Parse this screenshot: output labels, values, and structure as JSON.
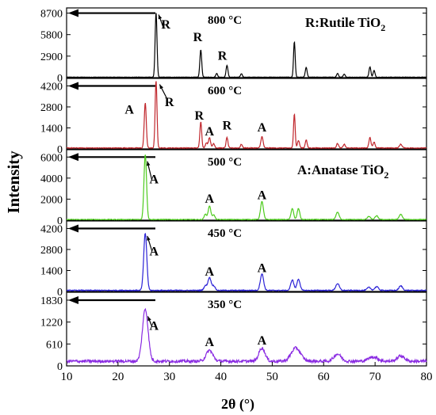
{
  "figure": {
    "ylabel": "Intensity",
    "xlabel": "2θ (°)",
    "xlim": [
      10,
      80
    ],
    "xticks": [
      10,
      20,
      30,
      40,
      50,
      60,
      70,
      80
    ],
    "legend_rutile": "R:Rutile TiO",
    "legend_anatase": "A:Anatase TiO",
    "legend_subscript": "2"
  },
  "chart_data": [
    {
      "type": "line",
      "series_label": "800 °C",
      "color": "#000000",
      "ylim": [
        0,
        9400
      ],
      "yticks": [
        0,
        2900,
        5800,
        8700
      ],
      "baseline": 60,
      "noise": 25,
      "peaks": [
        {
          "x": 27.4,
          "y": 8700,
          "w": 0.18
        },
        {
          "x": 36.1,
          "y": 3700,
          "w": 0.18
        },
        {
          "x": 39.2,
          "y": 500,
          "w": 0.18
        },
        {
          "x": 41.2,
          "y": 1600,
          "w": 0.18
        },
        {
          "x": 44.0,
          "y": 450,
          "w": 0.18
        },
        {
          "x": 54.3,
          "y": 4800,
          "w": 0.16
        },
        {
          "x": 56.6,
          "y": 1300,
          "w": 0.18
        },
        {
          "x": 62.7,
          "y": 500,
          "w": 0.18
        },
        {
          "x": 64.0,
          "y": 400,
          "w": 0.18
        },
        {
          "x": 69.0,
          "y": 1400,
          "w": 0.18
        },
        {
          "x": 69.8,
          "y": 900,
          "w": 0.18
        }
      ],
      "annotations": [
        {
          "label": "R",
          "x": 29.3,
          "y": 6600
        },
        {
          "label": "R",
          "x": 35.5,
          "y": 4900
        },
        {
          "label": "R",
          "x": 40.3,
          "y": 2400
        }
      ]
    },
    {
      "type": "line",
      "series_label": "600 °C",
      "color": "#c0272d",
      "ylim": [
        0,
        4700
      ],
      "yticks": [
        0,
        1400,
        2800,
        4200
      ],
      "baseline": 60,
      "noise": 25,
      "peaks": [
        {
          "x": 25.3,
          "y": 3000,
          "w": 0.2
        },
        {
          "x": 27.4,
          "y": 4500,
          "w": 0.18
        },
        {
          "x": 36.1,
          "y": 1750,
          "w": 0.18
        },
        {
          "x": 37.2,
          "y": 350,
          "w": 0.2
        },
        {
          "x": 37.8,
          "y": 700,
          "w": 0.2
        },
        {
          "x": 38.6,
          "y": 300,
          "w": 0.2
        },
        {
          "x": 41.2,
          "y": 700,
          "w": 0.18
        },
        {
          "x": 44.0,
          "y": 250,
          "w": 0.18
        },
        {
          "x": 48.0,
          "y": 750,
          "w": 0.22
        },
        {
          "x": 54.3,
          "y": 2300,
          "w": 0.16
        },
        {
          "x": 55.1,
          "y": 500,
          "w": 0.2
        },
        {
          "x": 56.6,
          "y": 550,
          "w": 0.18
        },
        {
          "x": 62.7,
          "y": 300,
          "w": 0.2
        },
        {
          "x": 64.0,
          "y": 250,
          "w": 0.2
        },
        {
          "x": 69.0,
          "y": 700,
          "w": 0.2
        },
        {
          "x": 69.8,
          "y": 400,
          "w": 0.2
        },
        {
          "x": 75.0,
          "y": 250,
          "w": 0.25
        }
      ],
      "annotations": [
        {
          "label": "A",
          "x": 22.2,
          "y": 2350
        },
        {
          "label": "R",
          "x": 30.0,
          "y": 2850
        },
        {
          "label": "R",
          "x": 35.8,
          "y": 1950
        },
        {
          "label": "A",
          "x": 37.8,
          "y": 900
        },
        {
          "label": "R",
          "x": 41.2,
          "y": 1300
        },
        {
          "label": "A",
          "x": 48.0,
          "y": 1150
        }
      ]
    },
    {
      "type": "line",
      "series_label": "500 °C",
      "color": "#4ecb1e",
      "ylim": [
        0,
        6700
      ],
      "yticks": [
        0,
        2000,
        4000,
        6000
      ],
      "baseline": 60,
      "noise": 30,
      "peaks": [
        {
          "x": 25.3,
          "y": 6200,
          "w": 0.25
        },
        {
          "x": 37.0,
          "y": 500,
          "w": 0.25
        },
        {
          "x": 37.8,
          "y": 1300,
          "w": 0.25
        },
        {
          "x": 38.6,
          "y": 450,
          "w": 0.25
        },
        {
          "x": 48.0,
          "y": 1700,
          "w": 0.28
        },
        {
          "x": 53.9,
          "y": 1050,
          "w": 0.25
        },
        {
          "x": 55.1,
          "y": 1050,
          "w": 0.25
        },
        {
          "x": 62.7,
          "y": 700,
          "w": 0.3
        },
        {
          "x": 68.8,
          "y": 300,
          "w": 0.3
        },
        {
          "x": 70.3,
          "y": 350,
          "w": 0.3
        },
        {
          "x": 75.0,
          "y": 500,
          "w": 0.3
        }
      ],
      "annotations": [
        {
          "label": "A",
          "x": 27.0,
          "y": 3500
        },
        {
          "label": "A",
          "x": 37.8,
          "y": 1650
        },
        {
          "label": "A",
          "x": 48.0,
          "y": 2000
        }
      ]
    },
    {
      "type": "line",
      "series_label": "450 °C",
      "color": "#2b22d6",
      "ylim": [
        0,
        4700
      ],
      "yticks": [
        0,
        1400,
        2800,
        4200
      ],
      "baseline": 70,
      "noise": 30,
      "peaks": [
        {
          "x": 25.3,
          "y": 3800,
          "w": 0.3
        },
        {
          "x": 37.0,
          "y": 300,
          "w": 0.3
        },
        {
          "x": 37.8,
          "y": 850,
          "w": 0.3
        },
        {
          "x": 38.6,
          "y": 300,
          "w": 0.3
        },
        {
          "x": 48.0,
          "y": 1100,
          "w": 0.32
        },
        {
          "x": 53.9,
          "y": 700,
          "w": 0.3
        },
        {
          "x": 55.1,
          "y": 750,
          "w": 0.3
        },
        {
          "x": 62.7,
          "y": 450,
          "w": 0.35
        },
        {
          "x": 68.8,
          "y": 200,
          "w": 0.35
        },
        {
          "x": 70.3,
          "y": 250,
          "w": 0.35
        },
        {
          "x": 75.0,
          "y": 300,
          "w": 0.35
        }
      ],
      "annotations": [
        {
          "label": "A",
          "x": 27.0,
          "y": 2400
        },
        {
          "label": "A",
          "x": 37.8,
          "y": 1050
        },
        {
          "label": "A",
          "x": 48.0,
          "y": 1300
        }
      ]
    },
    {
      "type": "line",
      "series_label": "350 °C",
      "color": "#8a2be2",
      "ylim": [
        0,
        2050
      ],
      "yticks": [
        0,
        610,
        1220,
        1830
      ],
      "baseline": 130,
      "noise": 40,
      "peaks": [
        {
          "x": 25.3,
          "y": 1450,
          "w": 0.55
        },
        {
          "x": 37.8,
          "y": 300,
          "w": 0.65
        },
        {
          "x": 48.0,
          "y": 370,
          "w": 0.6
        },
        {
          "x": 54.6,
          "y": 370,
          "w": 0.9
        },
        {
          "x": 62.7,
          "y": 200,
          "w": 0.7
        },
        {
          "x": 69.6,
          "y": 120,
          "w": 0.9
        },
        {
          "x": 75.0,
          "y": 150,
          "w": 0.7
        }
      ],
      "annotations": [
        {
          "label": "A",
          "x": 27.0,
          "y": 1000
        },
        {
          "label": "A",
          "x": 37.8,
          "y": 550
        },
        {
          "label": "A",
          "x": 48.0,
          "y": 600
        }
      ]
    }
  ]
}
